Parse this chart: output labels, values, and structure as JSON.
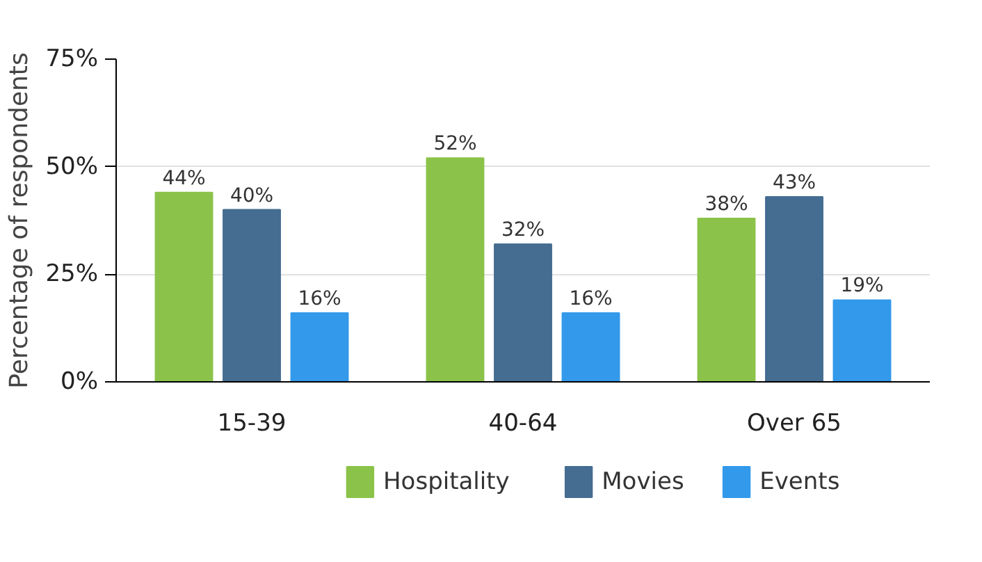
{
  "chart_data": {
    "type": "bar",
    "ylabel": "Percentage of respondents",
    "categories": [
      "15-39",
      "40-64",
      "Over 65"
    ],
    "series": [
      {
        "name": "Hospitality",
        "color": "#8bc34a",
        "values": [
          44,
          52,
          38
        ],
        "value_labels": [
          "44%",
          "52%",
          "38%"
        ]
      },
      {
        "name": "Movies",
        "color": "#456d91",
        "values": [
          40,
          32,
          43
        ],
        "value_labels": [
          "40%",
          "32%",
          "43%"
        ]
      },
      {
        "name": "Events",
        "color": "#3399ea",
        "values": [
          16,
          16,
          19
        ],
        "value_labels": [
          "16%",
          "16%",
          "19%"
        ]
      }
    ],
    "ylim": [
      0,
      75
    ],
    "yticks": [
      {
        "value": 0,
        "label": "0%"
      },
      {
        "value": 25,
        "label": "25%"
      },
      {
        "value": 50,
        "label": "50%"
      },
      {
        "value": 75,
        "label": "75%"
      }
    ],
    "grid": "y",
    "legend": "bottom"
  }
}
